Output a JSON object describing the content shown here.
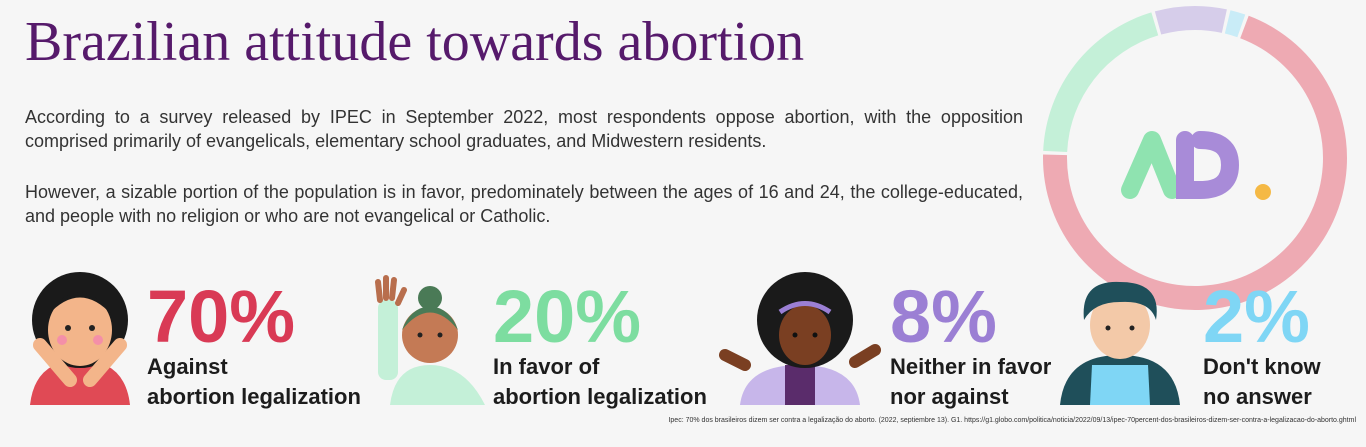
{
  "chart_data": {
    "type": "donut",
    "title": "Brazilian attitude towards abortion",
    "paragraphs": [
      "According to a survey released by IPEC in September 2022, most respondents oppose abortion, with the opposition comprised primarily of evangelicals, elementary school graduates, and Midwestern residents.",
      "However, a sizable portion of the population is in favor, predominately between the ages of 16 and 24, the college-educated, and people with no religion or who are not evangelical or Catholic."
    ],
    "categories": [
      "Against\nabortion legalization",
      "In favor of\nabortion legalization",
      "Neither in favor\nnor against",
      "Don't know\nno answer"
    ],
    "values": [
      70,
      20,
      8,
      2
    ],
    "value_labels": [
      "70%",
      "20%",
      "8%",
      "2%"
    ],
    "colors": [
      "#eeaab3",
      "#c4f0d8",
      "#d6cdea",
      "#c9ecf7"
    ],
    "label_colors": [
      "#d93a55",
      "#7ddda0",
      "#9b7fd4",
      "#7fd6f5"
    ],
    "source": "Ipec: 70% dos brasileiros dizem ser contra a legalização do aborto. (2022, septiembre 13). G1. https://g1.globo.com/politica/noticia/2022/09/13/ipec-70percent-dos-brasileiros-dizem-ser-contra-a-legalizacao-do-aborto.ghtml"
  }
}
